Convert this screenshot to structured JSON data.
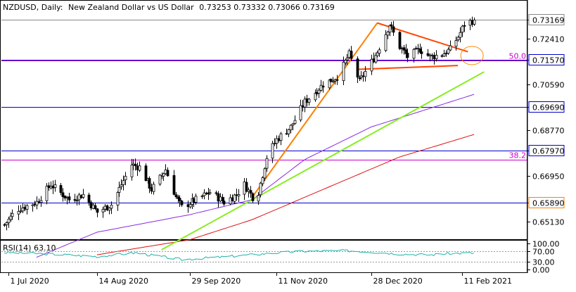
{
  "header": {
    "symbol": "NZDUSD",
    "timeframe": "Daily:",
    "description": "New Zealand Dollar vs US Dollar",
    "ohlc": [
      "0.73253",
      "0.73332",
      "0.73066",
      "0.73169"
    ]
  },
  "colors": {
    "background": "#ffffff",
    "bull_candle": "#ffffff",
    "bear_candle": "#000000",
    "candle_outline": "#000000",
    "level_line": "#0000cc",
    "fib_line": "#cc00cc",
    "support_line": "#ff8000",
    "triangle_lines": "#ff4500",
    "long_trend_line": "#88ee22",
    "ma_purple": "#8a2be2",
    "ma_red": "#dd1111",
    "rsi_line": "#20b2aa",
    "ellipse": "#ff8c00"
  },
  "chart_data": {
    "type": "candlestick",
    "symbol": "NZDUSD",
    "timeframe": "Daily",
    "x_range": [
      "2020-06-29",
      "2021-02-17"
    ],
    "ylim": [
      0.6442,
      0.7391
    ],
    "grid": false,
    "y_ticks": [
      "0.73169",
      "0.72410",
      "0.71570",
      "0.70590",
      "0.69690",
      "0.68770",
      "0.67970",
      "0.66950",
      "0.65890",
      "0.65130"
    ],
    "x_ticks": [
      "1 Jul 2020",
      "14 Aug 2020",
      "29 Sep 2020",
      "11 Nov 2020",
      "28 Dec 2020",
      "11 Feb 2021"
    ],
    "current_price": "0.73169",
    "horizontal_levels": [
      {
        "price": 0.7157,
        "label": "0.71570"
      },
      {
        "price": 0.6969,
        "label": "0.69690"
      },
      {
        "price": 0.6797,
        "label": "0.67970"
      },
      {
        "price": 0.6589,
        "label": "0.65890"
      }
    ],
    "fib_levels": [
      {
        "price": 0.7155,
        "label": "50.0"
      },
      {
        "price": 0.6758,
        "label": "38.2"
      }
    ],
    "anchors": [
      {
        "date": "2020-06-29",
        "close": 0.65
      },
      {
        "date": "2020-07-05",
        "close": 0.656
      },
      {
        "date": "2020-07-15",
        "close": 0.659
      },
      {
        "date": "2020-07-22",
        "close": 0.666
      },
      {
        "date": "2020-07-31",
        "close": 0.66
      },
      {
        "date": "2020-08-07",
        "close": 0.662
      },
      {
        "date": "2020-08-14",
        "close": 0.655
      },
      {
        "date": "2020-08-21",
        "close": 0.658
      },
      {
        "date": "2020-08-31",
        "close": 0.674
      },
      {
        "date": "2020-09-04",
        "close": 0.673
      },
      {
        "date": "2020-09-10",
        "close": 0.664
      },
      {
        "date": "2020-09-17",
        "close": 0.672
      },
      {
        "date": "2020-09-22",
        "close": 0.661
      },
      {
        "date": "2020-09-25",
        "close": 0.657
      },
      {
        "date": "2020-10-02",
        "close": 0.66
      },
      {
        "date": "2020-10-09",
        "close": 0.663
      },
      {
        "date": "2020-10-16",
        "close": 0.659
      },
      {
        "date": "2020-10-22",
        "close": 0.662
      },
      {
        "date": "2020-10-26",
        "close": 0.666
      },
      {
        "date": "2020-10-30",
        "close": 0.661
      },
      {
        "date": "2020-11-02",
        "close": 0.663
      },
      {
        "date": "2020-11-06",
        "close": 0.677
      },
      {
        "date": "2020-11-11",
        "close": 0.684
      },
      {
        "date": "2020-11-18",
        "close": 0.689
      },
      {
        "date": "2020-11-25",
        "close": 0.699
      },
      {
        "date": "2020-12-04",
        "close": 0.706
      },
      {
        "date": "2020-12-11",
        "close": 0.709
      },
      {
        "date": "2020-12-17",
        "close": 0.718
      },
      {
        "date": "2020-12-22",
        "close": 0.707
      },
      {
        "date": "2020-12-31",
        "close": 0.719
      },
      {
        "date": "2021-01-06",
        "close": 0.73
      },
      {
        "date": "2021-01-11",
        "close": 0.721
      },
      {
        "date": "2021-01-15",
        "close": 0.717
      },
      {
        "date": "2021-01-21",
        "close": 0.72
      },
      {
        "date": "2021-01-26",
        "close": 0.717
      },
      {
        "date": "2021-02-01",
        "close": 0.718
      },
      {
        "date": "2021-02-05",
        "close": 0.72
      },
      {
        "date": "2021-02-09",
        "close": 0.725
      },
      {
        "date": "2021-02-12",
        "close": 0.73
      },
      {
        "date": "2021-02-17",
        "close": 0.7317
      }
    ],
    "indicators": {
      "rsi": {
        "label": "RSI(14) 63.10",
        "value": 63.1,
        "ylim": [
          0,
          100
        ],
        "levels": [
          70,
          30
        ],
        "ticks": [
          "100.00",
          "70.00",
          "30.00",
          "0.00"
        ],
        "anchors": [
          {
            "date": "2020-06-29",
            "value": 65
          },
          {
            "date": "2020-07-20",
            "value": 60
          },
          {
            "date": "2020-08-14",
            "value": 50
          },
          {
            "date": "2020-09-02",
            "value": 64
          },
          {
            "date": "2020-09-25",
            "value": 38
          },
          {
            "date": "2020-10-15",
            "value": 48
          },
          {
            "date": "2020-11-11",
            "value": 64
          },
          {
            "date": "2020-11-25",
            "value": 70
          },
          {
            "date": "2020-12-17",
            "value": 72
          },
          {
            "date": "2020-12-31",
            "value": 66
          },
          {
            "date": "2021-01-11",
            "value": 60
          },
          {
            "date": "2021-01-26",
            "value": 56
          },
          {
            "date": "2021-02-05",
            "value": 62
          },
          {
            "date": "2021-02-17",
            "value": 63.1
          }
        ]
      },
      "moving_averages": [
        {
          "color": "purple",
          "anchors": [
            {
              "date": "2020-07-15",
              "value": 0.637
            },
            {
              "date": "2020-08-14",
              "value": 0.647
            },
            {
              "date": "2020-09-29",
              "value": 0.654
            },
            {
              "date": "2020-10-30",
              "value": 0.66
            },
            {
              "date": "2020-11-25",
              "value": 0.676
            },
            {
              "date": "2020-12-28",
              "value": 0.689
            },
            {
              "date": "2021-02-17",
              "value": 0.702
            }
          ]
        },
        {
          "color": "red",
          "anchors": [
            {
              "date": "2020-08-14",
              "value": 0.638
            },
            {
              "date": "2020-09-29",
              "value": 0.644
            },
            {
              "date": "2020-10-30",
              "value": 0.652
            },
            {
              "date": "2020-12-01",
              "value": 0.663
            },
            {
              "date": "2021-01-11",
              "value": 0.677
            },
            {
              "date": "2021-02-17",
              "value": 0.686
            }
          ]
        }
      ]
    },
    "drawings": [
      {
        "kind": "support-line",
        "from": {
          "date": "2020-10-30",
          "price": 0.661
        },
        "to": {
          "date": "2020-12-31",
          "price": 0.7305
        }
      },
      {
        "kind": "triangle-upper",
        "from": {
          "date": "2020-12-31",
          "price": 0.7305
        },
        "to": {
          "date": "2021-02-14",
          "price": 0.719
        }
      },
      {
        "kind": "triangle-lower",
        "from": {
          "date": "2020-12-22",
          "price": 0.712
        },
        "to": {
          "date": "2021-02-09",
          "price": 0.7135
        }
      },
      {
        "kind": "long-trend-line",
        "from": {
          "date": "2020-09-15",
          "price": 0.64
        },
        "to": {
          "date": "2021-02-22",
          "price": 0.711
        }
      }
    ]
  }
}
